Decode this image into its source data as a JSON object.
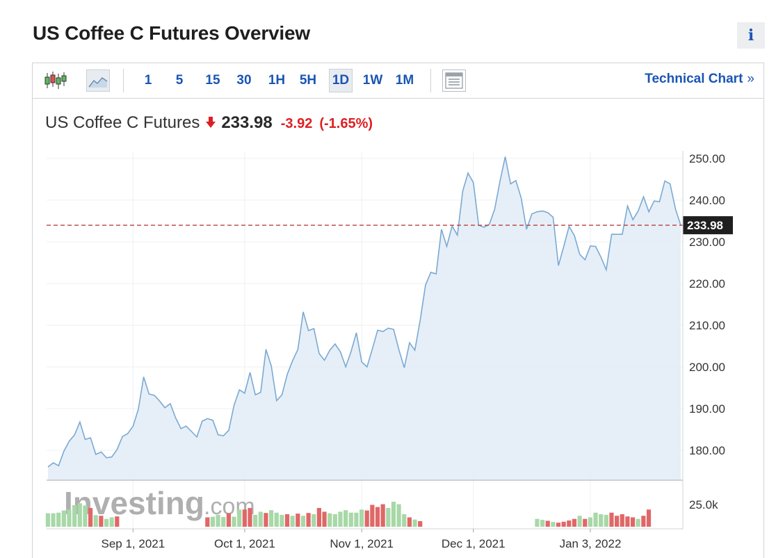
{
  "page": {
    "title": "US Coffee C Futures Overview",
    "info_label": "i"
  },
  "toolbar": {
    "icons": [
      "candlestick-chart-icon",
      "area-chart-icon",
      "table-view-icon"
    ],
    "timeframes": [
      "1",
      "5",
      "15",
      "30",
      "1H",
      "5H",
      "1D",
      "1W",
      "1M"
    ],
    "active_timeframe": "1D",
    "technical_link": "Technical Chart",
    "technical_chevron": "»"
  },
  "quote": {
    "name": "US Coffee C Futures",
    "direction": "down",
    "price": "233.98",
    "change": "-3.92",
    "change_pct": "(-1.65%)"
  },
  "colors": {
    "accent": "#1a55b4",
    "negative": "#dd1f23",
    "line": "#7aa9d3",
    "area": "#e3edf6",
    "volume_up": "#a8d8a8",
    "volume_down": "#e06767",
    "last_price_line": "#b72b2b"
  },
  "chart_data": {
    "type": "area",
    "title": "",
    "xlabel": "",
    "ylabel": "",
    "ylim": [
      173,
      251.5
    ],
    "y_ticks": [
      "250.00",
      "240.00",
      "230.00",
      "220.00",
      "210.00",
      "200.00",
      "190.00",
      "180.00"
    ],
    "x_ticks": [
      "Sep 1, 2021",
      "Oct 1, 2021",
      "Nov 1, 2021",
      "Dec 1, 2021",
      "Jan 3, 2022"
    ],
    "last_value": 233.98,
    "last_value_label": "233.98",
    "grid": true,
    "watermark": "Investing.com",
    "series": [
      {
        "values": [
          176.0,
          177.0,
          176.3,
          179.8,
          182.2,
          183.7,
          186.8,
          182.6,
          183.0,
          179.0,
          179.6,
          178.2,
          178.4,
          180.2,
          183.3,
          184.0,
          185.8,
          189.9,
          197.6,
          193.5,
          193.2,
          191.8,
          190.2,
          191.2,
          187.8,
          185.2,
          185.8,
          184.5,
          183.2,
          187.0,
          187.6,
          187.2,
          183.7,
          183.5,
          184.8,
          190.8,
          194.5,
          193.7,
          198.7,
          193.3,
          193.9,
          204.2,
          200.2,
          191.9,
          193.3,
          198.2,
          201.5,
          204.2,
          213.2,
          208.7,
          209.2,
          203.2,
          201.6,
          204.0,
          205.5,
          203.6,
          200.0,
          203.7,
          208.2,
          201.2,
          200.0,
          204.3,
          208.8,
          208.5,
          209.3,
          209.0,
          204.1,
          199.8,
          205.8,
          204.0,
          211.2,
          219.6,
          222.7,
          222.3,
          233.0,
          228.9,
          233.8,
          231.6,
          242.2,
          246.5,
          244.2,
          234.0,
          233.5,
          234.2,
          237.8,
          244.5,
          250.4,
          243.9,
          244.7,
          240.5,
          233.0,
          236.7,
          237.2,
          237.4,
          237.0,
          235.9,
          224.3,
          228.9,
          233.7,
          231.5,
          227.0,
          225.7,
          229.0,
          228.9,
          226.3,
          223.3,
          231.8,
          231.8,
          231.8,
          238.6,
          235.3,
          237.4,
          240.8,
          237.2,
          239.8,
          239.6,
          244.6,
          243.9,
          237.9,
          233.98
        ]
      }
    ],
    "volume": {
      "label": "25.0k",
      "segments": [
        {
          "start": 0,
          "bars": [
            {
              "v": 0.43,
              "d": "up"
            },
            {
              "v": 0.43,
              "d": "up"
            },
            {
              "v": 0.45,
              "d": "up"
            },
            {
              "v": 0.52,
              "d": "up"
            },
            {
              "v": 0.55,
              "d": "up"
            },
            {
              "v": 0.69,
              "d": "up"
            },
            {
              "v": 0.75,
              "d": "up"
            },
            {
              "v": 0.68,
              "d": "up"
            },
            {
              "v": 0.6,
              "d": "down"
            },
            {
              "v": 0.37,
              "d": "up"
            },
            {
              "v": 0.35,
              "d": "down"
            },
            {
              "v": 0.25,
              "d": "up"
            },
            {
              "v": 0.3,
              "d": "up"
            },
            {
              "v": 0.33,
              "d": "down"
            }
          ]
        },
        {
          "start": 30,
          "bars": [
            {
              "v": 0.3,
              "d": "down"
            },
            {
              "v": 0.32,
              "d": "up"
            },
            {
              "v": 0.38,
              "d": "up"
            },
            {
              "v": 0.31,
              "d": "up"
            },
            {
              "v": 0.43,
              "d": "down"
            },
            {
              "v": 0.32,
              "d": "up"
            },
            {
              "v": 0.55,
              "d": "up"
            },
            {
              "v": 0.55,
              "d": "down"
            },
            {
              "v": 0.6,
              "d": "down"
            },
            {
              "v": 0.38,
              "d": "up"
            },
            {
              "v": 0.48,
              "d": "up"
            },
            {
              "v": 0.44,
              "d": "down"
            },
            {
              "v": 0.53,
              "d": "up"
            },
            {
              "v": 0.45,
              "d": "up"
            },
            {
              "v": 0.38,
              "d": "up"
            },
            {
              "v": 0.4,
              "d": "down"
            },
            {
              "v": 0.35,
              "d": "up"
            },
            {
              "v": 0.42,
              "d": "down"
            },
            {
              "v": 0.35,
              "d": "up"
            },
            {
              "v": 0.44,
              "d": "down"
            },
            {
              "v": 0.4,
              "d": "up"
            },
            {
              "v": 0.6,
              "d": "down"
            },
            {
              "v": 0.48,
              "d": "down"
            },
            {
              "v": 0.43,
              "d": "up"
            },
            {
              "v": 0.4,
              "d": "up"
            },
            {
              "v": 0.48,
              "d": "up"
            },
            {
              "v": 0.53,
              "d": "up"
            },
            {
              "v": 0.45,
              "d": "up"
            },
            {
              "v": 0.45,
              "d": "up"
            },
            {
              "v": 0.55,
              "d": "up"
            },
            {
              "v": 0.52,
              "d": "down"
            },
            {
              "v": 0.7,
              "d": "down"
            },
            {
              "v": 0.63,
              "d": "down"
            },
            {
              "v": 0.72,
              "d": "down"
            },
            {
              "v": 0.6,
              "d": "up"
            },
            {
              "v": 0.8,
              "d": "up"
            },
            {
              "v": 0.72,
              "d": "up"
            },
            {
              "v": 0.4,
              "d": "up"
            },
            {
              "v": 0.3,
              "d": "down"
            },
            {
              "v": 0.23,
              "d": "up"
            },
            {
              "v": 0.18,
              "d": "down"
            }
          ]
        },
        {
          "start": 92,
          "bars": [
            {
              "v": 0.25,
              "d": "up"
            },
            {
              "v": 0.22,
              "d": "up"
            },
            {
              "v": 0.19,
              "d": "down"
            },
            {
              "v": 0.15,
              "d": "up"
            },
            {
              "v": 0.13,
              "d": "down"
            },
            {
              "v": 0.16,
              "d": "down"
            },
            {
              "v": 0.2,
              "d": "down"
            },
            {
              "v": 0.25,
              "d": "down"
            },
            {
              "v": 0.35,
              "d": "up"
            },
            {
              "v": 0.25,
              "d": "down"
            },
            {
              "v": 0.3,
              "d": "up"
            },
            {
              "v": 0.45,
              "d": "up"
            },
            {
              "v": 0.4,
              "d": "up"
            },
            {
              "v": 0.38,
              "d": "up"
            },
            {
              "v": 0.45,
              "d": "down"
            },
            {
              "v": 0.35,
              "d": "down"
            },
            {
              "v": 0.4,
              "d": "down"
            },
            {
              "v": 0.33,
              "d": "down"
            },
            {
              "v": 0.3,
              "d": "down"
            },
            {
              "v": 0.25,
              "d": "up"
            },
            {
              "v": 0.35,
              "d": "down"
            },
            {
              "v": 0.55,
              "d": "down"
            }
          ]
        }
      ]
    }
  }
}
